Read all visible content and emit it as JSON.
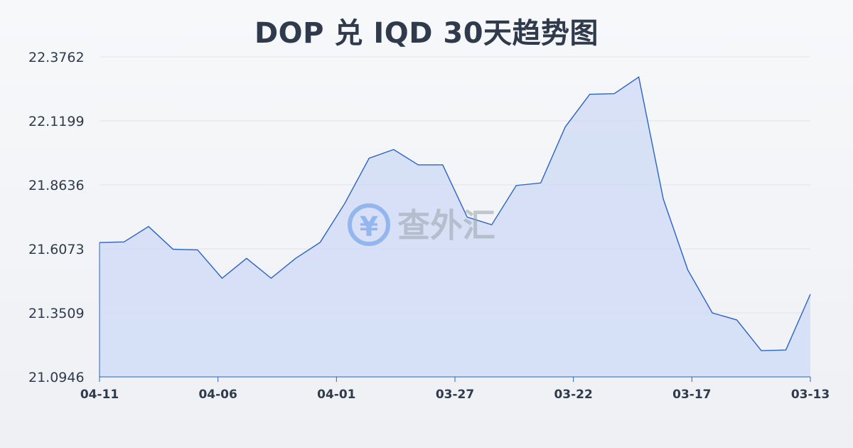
{
  "chart_data": {
    "type": "area",
    "title": "DOP 兑 IQD 30天趋势图",
    "xlabel": "",
    "ylabel": "",
    "ylim": [
      21.0946,
      22.3762
    ],
    "yticks": [
      "22.3762",
      "22.1199",
      "21.8636",
      "21.6073",
      "21.3509",
      "21.0946"
    ],
    "x_tick_labels": [
      "04-11",
      "04-06",
      "04-01",
      "03-27",
      "03-22",
      "03-17",
      "03-13"
    ],
    "grid": true,
    "series": [
      {
        "values": [
          21.6326,
          21.6352,
          21.6968,
          21.6058,
          21.6032,
          21.4897,
          21.5693,
          21.4897,
          21.5693,
          21.6334,
          21.7886,
          21.9705,
          22.0052,
          21.9437,
          21.9437,
          21.7347,
          21.7039,
          21.8611,
          21.8713,
          22.0956,
          22.2264,
          22.2289,
          22.2956,
          21.8072,
          21.5231,
          21.3509,
          21.3227,
          21.1997,
          21.2023,
          21.4256
        ]
      }
    ],
    "colors": {
      "line": "#2b63c9",
      "fill": "#cdd9f5"
    }
  },
  "watermark": {
    "text": "查外汇",
    "symbol": "¥"
  }
}
